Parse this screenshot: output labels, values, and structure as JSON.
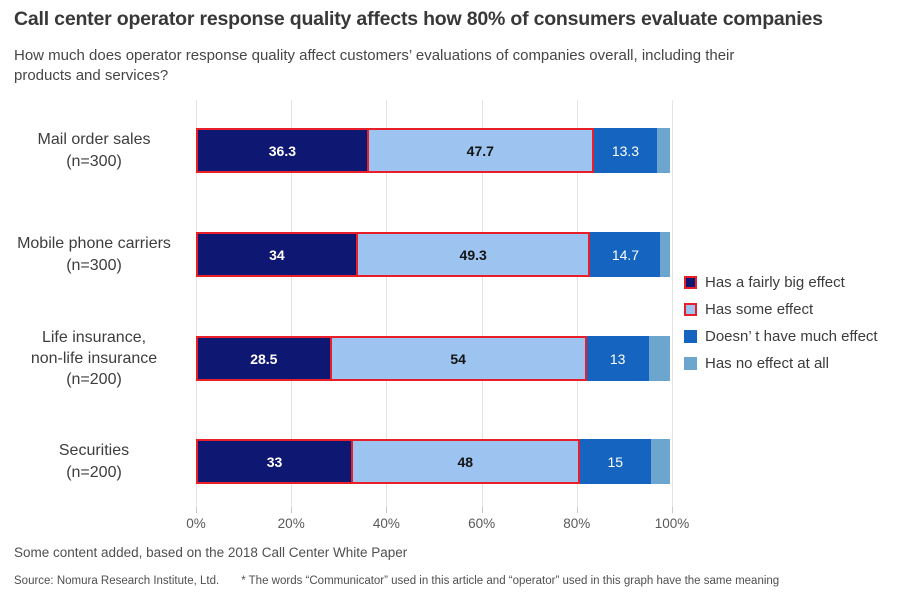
{
  "chart_data": {
    "type": "bar",
    "orientation": "horizontal",
    "stacked": true,
    "title": "Call center operator response quality affects how 80% of consumers evaluate companies",
    "subtitle": "How much does operator response quality affect customers’ evaluations of companies overall, including their products and services?",
    "xlim": [
      0,
      100
    ],
    "grid": true,
    "x_tick_labels": [
      "0%",
      "20%",
      "40%",
      "60%",
      "80%",
      "100%"
    ],
    "x_tick_values": [
      0,
      20,
      40,
      60,
      80,
      100
    ],
    "legend_position": "right",
    "categories": [
      [
        "Mail order sales",
        "(n=300)"
      ],
      [
        "Mobile phone carriers",
        "(n=300)"
      ],
      [
        "Life insurance,",
        "non-life insurance",
        "(n=200)"
      ],
      [
        "Securities",
        "(n=200)"
      ]
    ],
    "series": [
      {
        "name": "Has a fairly big effect",
        "color": "#0e1772",
        "border_color": "#e81e28",
        "label_color": "#ffffff",
        "label_bold": true,
        "values": [
          36.3,
          34,
          28.5,
          33
        ],
        "labels": [
          "36.3",
          "34",
          "28.5",
          "33"
        ]
      },
      {
        "name": "Has some effect",
        "color": "#9dc3f0",
        "border_color": "#e81e28",
        "label_color": "#141414",
        "label_bold": true,
        "values": [
          47.7,
          49.3,
          54,
          48
        ],
        "labels": [
          "47.7",
          "49.3",
          "54",
          "48"
        ]
      },
      {
        "name": "Doesn’ t have much effect",
        "color": "#1565c0",
        "border_color": null,
        "label_color": "#ffffff",
        "label_bold": false,
        "values": [
          13.3,
          14.7,
          13,
          15
        ],
        "labels": [
          "13.3",
          "14.7",
          "13",
          "15"
        ]
      },
      {
        "name": "Has no effect at all",
        "color": "#6ca5cd",
        "border_color": null,
        "label_color": null,
        "label_bold": false,
        "values": [
          2.7,
          2,
          4.5,
          4
        ],
        "labels": [
          "",
          "",
          "",
          ""
        ]
      }
    ]
  },
  "footer": {
    "note": "Some content added, based on the 2018 Call Center White Paper",
    "source": "Source: Nomura Research Institute, Ltd.",
    "asterisk_note": "* The words “Communicator” used in this article and “operator” used in this graph have the same meaning"
  }
}
